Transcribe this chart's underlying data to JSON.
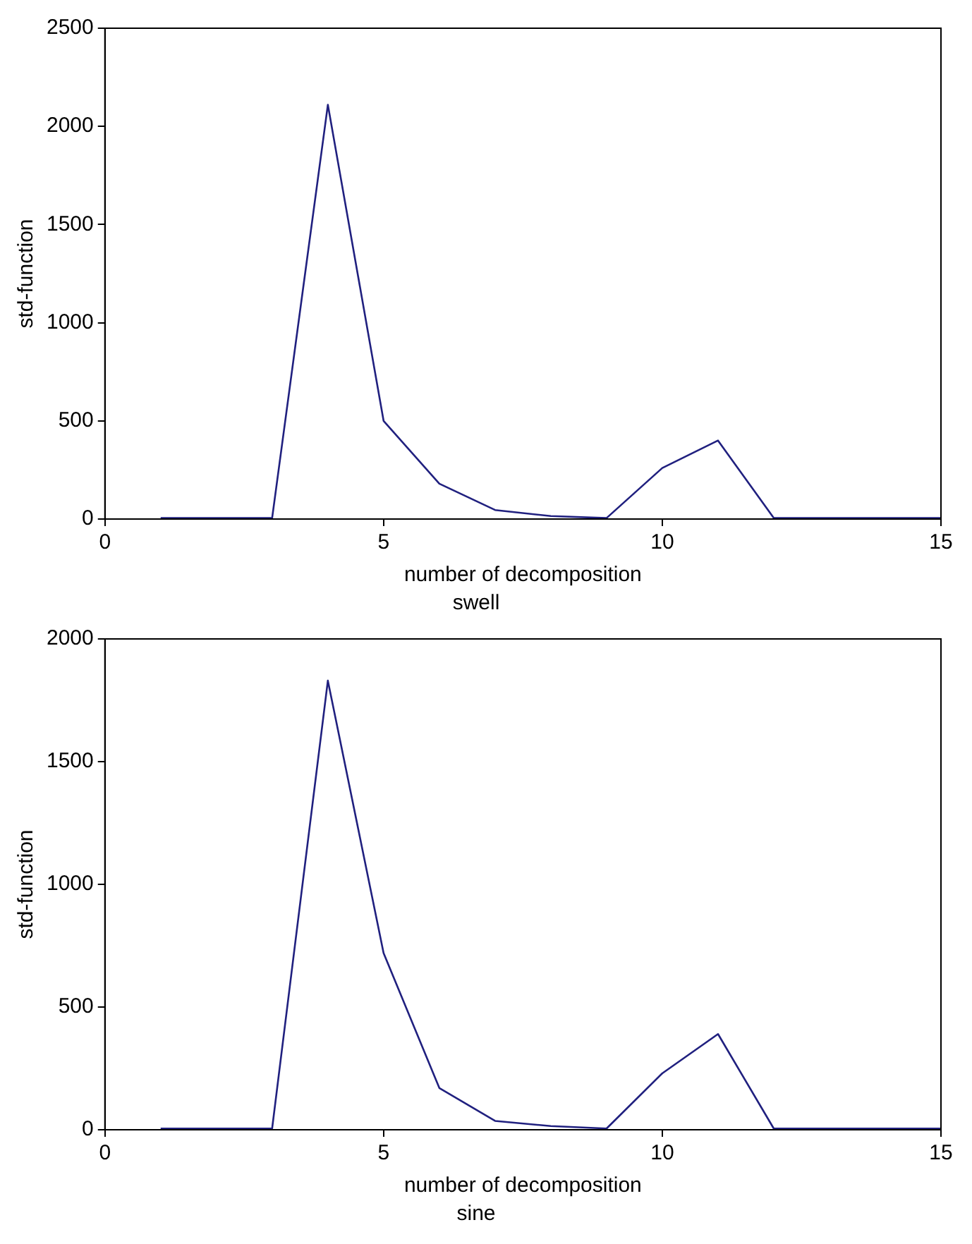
{
  "chart_data": [
    {
      "type": "line",
      "title": "swell",
      "xlabel": "number of decomposition",
      "ylabel": "std-function",
      "x": [
        1,
        2,
        3,
        4,
        5,
        6,
        7,
        8,
        9,
        10,
        11,
        12,
        13,
        14,
        15
      ],
      "series": [
        {
          "color": "#20207f",
          "values": [
            5,
            5,
            5,
            2110,
            500,
            180,
            46,
            15,
            5,
            260,
            400,
            5,
            5,
            5,
            5
          ]
        }
      ],
      "xlim": [
        0,
        15
      ],
      "xticks": [
        0,
        5,
        10,
        15
      ],
      "ylim": [
        0,
        2500
      ],
      "yticks": [
        0,
        500,
        1000,
        1500,
        2000,
        2500
      ],
      "grid": false,
      "legend": false,
      "marker": "none",
      "line_style": "solid"
    },
    {
      "type": "line",
      "title": "sine",
      "xlabel": "number of decomposition",
      "ylabel": "std-function",
      "x": [
        1,
        2,
        3,
        4,
        5,
        6,
        7,
        8,
        9,
        10,
        11,
        12,
        13,
        14,
        15
      ],
      "series": [
        {
          "color": "#20207f",
          "values": [
            5,
            5,
            5,
            1830,
            720,
            170,
            36,
            15,
            5,
            230,
            390,
            5,
            5,
            5,
            5
          ]
        }
      ],
      "xlim": [
        0,
        15
      ],
      "xticks": [
        0,
        5,
        10,
        15
      ],
      "ylim": [
        0,
        2000
      ],
      "yticks": [
        0,
        500,
        1000,
        1500,
        2000
      ],
      "grid": false,
      "legend": false,
      "marker": "none",
      "line_style": "solid"
    }
  ]
}
